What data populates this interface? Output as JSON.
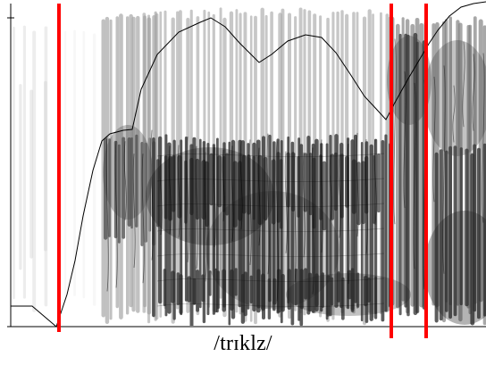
{
  "transcription": "/trɪklz/",
  "colors": {
    "boundary": "#ff0000",
    "contour": "#000000",
    "envelope": "#000000",
    "background": "#ffffff"
  },
  "boundary_count": 3
}
